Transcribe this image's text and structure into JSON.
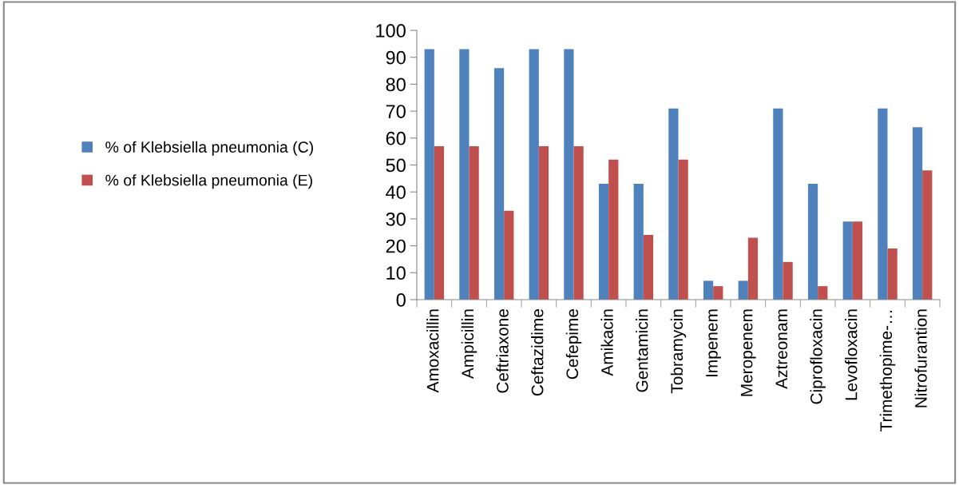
{
  "chart_data": {
    "type": "bar",
    "categories": [
      "Amoxacillin",
      "Ampicillin",
      "Ceftriaxone",
      "Ceftazidime",
      "Cefepime",
      "Amikacin",
      "Gentamicin",
      "Tobramycin",
      "Impenem",
      "Meropenem",
      "Aztreonam",
      "Ciprofloxacin",
      "Levofloxacin",
      "Trimethopime-…",
      "Nitrofurantion"
    ],
    "series": [
      {
        "name": "% of Klebsiella pneumonia (C)",
        "color": "#4f81bd",
        "values": [
          93,
          93,
          86,
          93,
          93,
          43,
          43,
          71,
          7,
          7,
          71,
          43,
          29,
          71,
          64
        ]
      },
      {
        "name": "% of Klebsiella pneumonia (E)",
        "color": "#c0504d",
        "values": [
          57,
          57,
          33,
          57,
          57,
          52,
          24,
          52,
          5,
          23,
          14,
          5,
          29,
          19,
          48
        ]
      }
    ],
    "ylim": [
      0,
      100
    ],
    "yticks": [
      0,
      10,
      20,
      30,
      40,
      50,
      60,
      70,
      80,
      90,
      100
    ],
    "grid": false,
    "legend": "left"
  }
}
